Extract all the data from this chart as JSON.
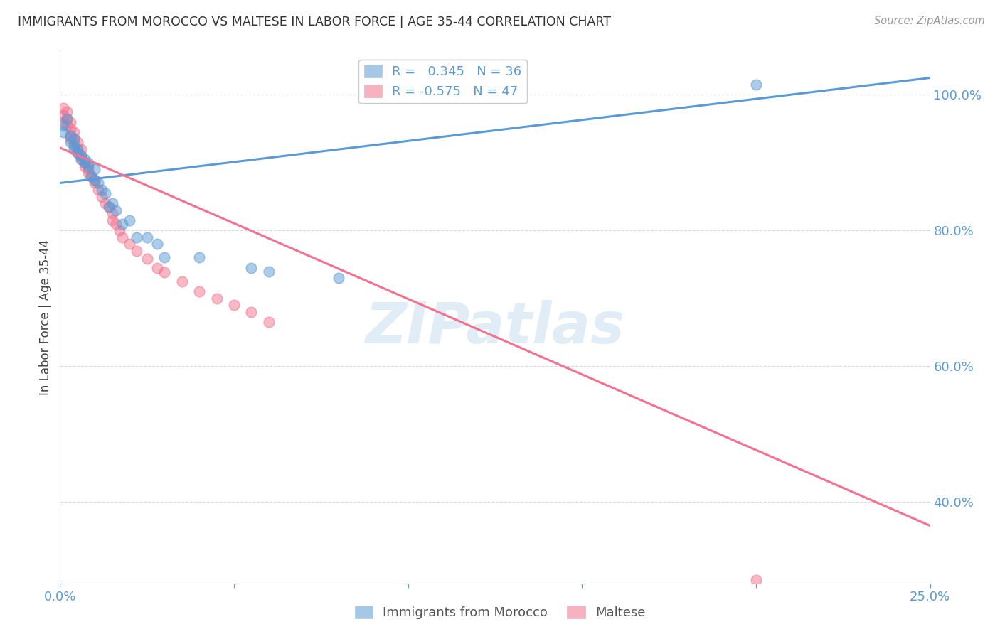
{
  "title": "IMMIGRANTS FROM MOROCCO VS MALTESE IN LABOR FORCE | AGE 35-44 CORRELATION CHART",
  "source": "Source: ZipAtlas.com",
  "ylabel_label": "In Labor Force | Age 35-44",
  "xlim": [
    0.0,
    0.25
  ],
  "ylim": [
    0.28,
    1.065
  ],
  "xticks": [
    0.0,
    0.05,
    0.1,
    0.15,
    0.2,
    0.25
  ],
  "yticks": [
    0.4,
    0.6,
    0.8,
    1.0
  ],
  "ytick_labels": [
    "40.0%",
    "60.0%",
    "80.0%",
    "100.0%"
  ],
  "xtick_labels": [
    "0.0%",
    "",
    "",
    "",
    "",
    "25.0%"
  ],
  "watermark": "ZIPatlas",
  "legend_label_blue": "R =   0.345   N = 36",
  "legend_label_pink": "R = -0.575   N = 47",
  "legend_bottom_blue": "Immigrants from Morocco",
  "legend_bottom_pink": "Maltese",
  "blue_color": "#5b9bd5",
  "pink_color": "#f4728f",
  "blue_scatter": [
    [
      0.001,
      0.955
    ],
    [
      0.001,
      0.945
    ],
    [
      0.002,
      0.965
    ],
    [
      0.003,
      0.94
    ],
    [
      0.003,
      0.93
    ],
    [
      0.004,
      0.935
    ],
    [
      0.004,
      0.925
    ],
    [
      0.004,
      0.92
    ],
    [
      0.005,
      0.92
    ],
    [
      0.005,
      0.915
    ],
    [
      0.006,
      0.91
    ],
    [
      0.006,
      0.905
    ],
    [
      0.007,
      0.905
    ],
    [
      0.007,
      0.9
    ],
    [
      0.008,
      0.895
    ],
    [
      0.008,
      0.9
    ],
    [
      0.009,
      0.88
    ],
    [
      0.01,
      0.89
    ],
    [
      0.01,
      0.875
    ],
    [
      0.011,
      0.87
    ],
    [
      0.012,
      0.86
    ],
    [
      0.013,
      0.855
    ],
    [
      0.014,
      0.835
    ],
    [
      0.015,
      0.84
    ],
    [
      0.016,
      0.83
    ],
    [
      0.018,
      0.81
    ],
    [
      0.02,
      0.815
    ],
    [
      0.022,
      0.79
    ],
    [
      0.025,
      0.79
    ],
    [
      0.028,
      0.78
    ],
    [
      0.03,
      0.76
    ],
    [
      0.04,
      0.76
    ],
    [
      0.055,
      0.745
    ],
    [
      0.06,
      0.74
    ],
    [
      0.08,
      0.73
    ],
    [
      0.2,
      1.015
    ]
  ],
  "pink_scatter": [
    [
      0.001,
      0.98
    ],
    [
      0.001,
      0.97
    ],
    [
      0.001,
      0.96
    ],
    [
      0.002,
      0.975
    ],
    [
      0.002,
      0.965
    ],
    [
      0.002,
      0.955
    ],
    [
      0.003,
      0.96
    ],
    [
      0.003,
      0.95
    ],
    [
      0.003,
      0.94
    ],
    [
      0.003,
      0.935
    ],
    [
      0.004,
      0.945
    ],
    [
      0.004,
      0.935
    ],
    [
      0.004,
      0.928
    ],
    [
      0.005,
      0.93
    ],
    [
      0.005,
      0.92
    ],
    [
      0.005,
      0.915
    ],
    [
      0.006,
      0.92
    ],
    [
      0.006,
      0.91
    ],
    [
      0.006,
      0.905
    ],
    [
      0.007,
      0.9
    ],
    [
      0.007,
      0.895
    ],
    [
      0.008,
      0.89
    ],
    [
      0.008,
      0.885
    ],
    [
      0.009,
      0.88
    ],
    [
      0.01,
      0.875
    ],
    [
      0.01,
      0.87
    ],
    [
      0.011,
      0.86
    ],
    [
      0.012,
      0.85
    ],
    [
      0.013,
      0.84
    ],
    [
      0.014,
      0.835
    ],
    [
      0.015,
      0.825
    ],
    [
      0.015,
      0.815
    ],
    [
      0.016,
      0.81
    ],
    [
      0.017,
      0.8
    ],
    [
      0.018,
      0.79
    ],
    [
      0.02,
      0.78
    ],
    [
      0.022,
      0.77
    ],
    [
      0.025,
      0.758
    ],
    [
      0.028,
      0.745
    ],
    [
      0.03,
      0.738
    ],
    [
      0.035,
      0.725
    ],
    [
      0.04,
      0.71
    ],
    [
      0.045,
      0.7
    ],
    [
      0.05,
      0.69
    ],
    [
      0.055,
      0.68
    ],
    [
      0.06,
      0.665
    ],
    [
      0.2,
      0.285
    ]
  ],
  "blue_line_x": [
    0.0,
    0.25
  ],
  "blue_line_y": [
    0.87,
    1.025
  ],
  "pink_line_x": [
    0.0,
    0.25
  ],
  "pink_line_y": [
    0.922,
    0.365
  ],
  "grid_color": "#d0d0d0",
  "background_color": "#ffffff"
}
